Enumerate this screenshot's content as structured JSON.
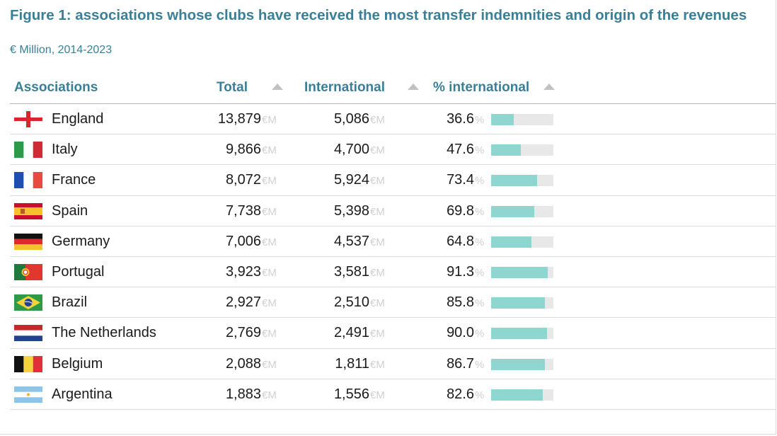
{
  "title": "Figure 1: associations whose clubs have received the most transfer indemnities and origin of the revenues",
  "subtitle": "€ Million, 2014-2023",
  "columns": {
    "association": "Associations",
    "total": "Total",
    "international": "International",
    "pct": "% international"
  },
  "units": {
    "money": "€M",
    "pct": "%"
  },
  "colors": {
    "title": "#3a7f98",
    "bar": "#8fd6d1",
    "bar_track": "#e8e8e8"
  },
  "rows": [
    {
      "name": "England",
      "flag": "england-flag",
      "total": "13,879",
      "international": "5,086",
      "pct": "36.6"
    },
    {
      "name": "Italy",
      "flag": "italy-flag",
      "total": "9,866",
      "international": "4,700",
      "pct": "47.6"
    },
    {
      "name": "France",
      "flag": "france-flag",
      "total": "8,072",
      "international": "5,924",
      "pct": "73.4"
    },
    {
      "name": "Spain",
      "flag": "spain-flag",
      "total": "7,738",
      "international": "5,398",
      "pct": "69.8"
    },
    {
      "name": "Germany",
      "flag": "germany-flag",
      "total": "7,006",
      "international": "4,537",
      "pct": "64.8"
    },
    {
      "name": "Portugal",
      "flag": "portugal-flag",
      "total": "3,923",
      "international": "3,581",
      "pct": "91.3"
    },
    {
      "name": "Brazil",
      "flag": "brazil-flag",
      "total": "2,927",
      "international": "2,510",
      "pct": "85.8"
    },
    {
      "name": "The Netherlands",
      "flag": "netherlands-flag",
      "total": "2,769",
      "international": "2,491",
      "pct": "90.0"
    },
    {
      "name": "Belgium",
      "flag": "belgium-flag",
      "total": "2,088",
      "international": "1,811",
      "pct": "86.7"
    },
    {
      "name": "Argentina",
      "flag": "argentina-flag",
      "total": "1,883",
      "international": "1,556",
      "pct": "82.6"
    }
  ],
  "chart_data": {
    "type": "table",
    "title": "Figure 1: associations whose clubs have received the most transfer indemnities and origin of the revenues",
    "subtitle": "€ Million, 2014-2023",
    "columns": [
      "Associations",
      "Total",
      "International",
      "% international"
    ],
    "categories": [
      "England",
      "Italy",
      "France",
      "Spain",
      "Germany",
      "Portugal",
      "Brazil",
      "The Netherlands",
      "Belgium",
      "Argentina"
    ],
    "series": [
      {
        "name": "Total",
        "values": [
          13879,
          9866,
          8072,
          7738,
          7006,
          3923,
          2927,
          2769,
          2088,
          1883
        ]
      },
      {
        "name": "International",
        "values": [
          5086,
          4700,
          5924,
          5398,
          4537,
          3581,
          2510,
          2491,
          1811,
          1556
        ]
      },
      {
        "name": "% international",
        "values": [
          36.6,
          47.6,
          73.4,
          69.8,
          64.8,
          91.3,
          85.8,
          90.0,
          86.7,
          82.6
        ]
      }
    ],
    "bar_range": [
      0,
      100
    ]
  }
}
